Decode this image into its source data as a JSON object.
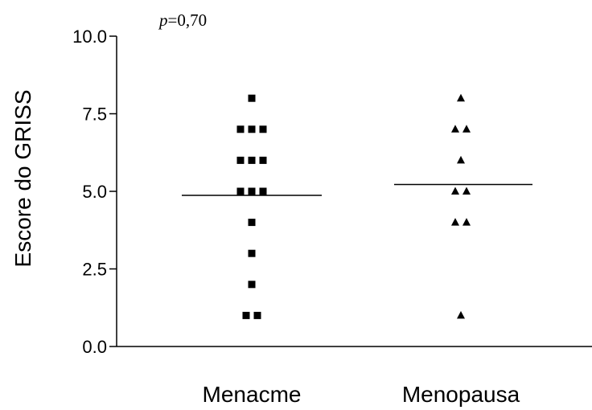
{
  "chart_data": {
    "type": "scatter",
    "ylabel": "Escore do GRISS",
    "ylim": [
      0,
      10
    ],
    "yticks": [
      "0.0",
      "2.5",
      "5.0",
      "7.5",
      "10.0"
    ],
    "annotation": {
      "p_label": "p",
      "p_value": "=0,70"
    },
    "categories": [
      "Menacme",
      "Menopausa"
    ],
    "series": [
      {
        "marker": "square",
        "values": [
          8,
          7,
          7,
          7,
          6,
          6,
          6,
          5,
          5,
          5,
          4,
          3,
          2,
          1,
          1
        ],
        "mean": 4.87
      },
      {
        "marker": "triangle",
        "values": [
          8,
          7,
          7,
          6,
          5,
          5,
          4,
          4,
          1
        ],
        "mean": 5.22
      }
    ]
  }
}
